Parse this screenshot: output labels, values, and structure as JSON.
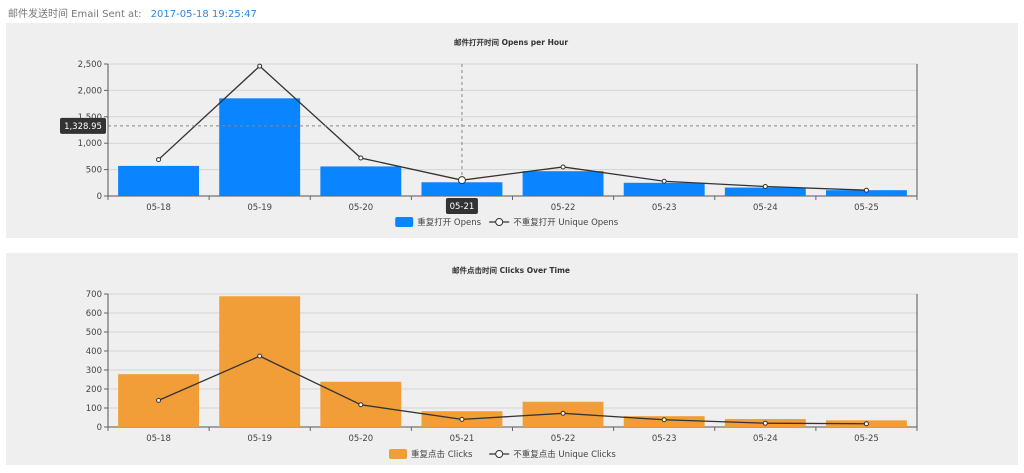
{
  "header": {
    "sent_label": "邮件发送时间 Email Sent at:",
    "sent_value": "2017-05-18 19:25:47"
  },
  "chart_data": [
    {
      "type": "bar",
      "title": "邮件打开时间 Opens per Hour",
      "categories": [
        "05-18",
        "05-19",
        "05-20",
        "05-21",
        "05-22",
        "05-23",
        "05-24",
        "05-25"
      ],
      "ylim": [
        0,
        2500
      ],
      "yticks": [
        0,
        500,
        1000,
        1500,
        2000,
        2500
      ],
      "ytick_labels": [
        "0",
        "500",
        "1,000",
        "1,500",
        "2,000",
        "2,500"
      ],
      "bar_color": "#0a84ff",
      "line_color": "#333333",
      "series": [
        {
          "name": "重复打开 Opens",
          "kind": "bar",
          "values": [
            570,
            1850,
            560,
            260,
            470,
            250,
            160,
            110
          ]
        },
        {
          "name": "不重复打开 Unique Opens",
          "kind": "line",
          "values": [
            690,
            2460,
            720,
            300,
            550,
            280,
            180,
            110
          ]
        }
      ],
      "highlight": {
        "category": "05-21",
        "category_index": 3,
        "y_label": "1,328.95",
        "y_value": 1328.95
      },
      "grid": true,
      "legend": "bottom-center"
    },
    {
      "type": "bar",
      "title": "邮件点击时间 Clicks Over Time",
      "categories": [
        "05-18",
        "05-19",
        "05-20",
        "05-21",
        "05-22",
        "05-23",
        "05-24",
        "05-25"
      ],
      "ylim": [
        0,
        700
      ],
      "yticks": [
        0,
        100,
        200,
        300,
        400,
        500,
        600,
        700
      ],
      "ytick_labels": [
        "0",
        "100",
        "200",
        "300",
        "400",
        "500",
        "600",
        "700"
      ],
      "bar_color": "#f19e38",
      "line_color": "#333333",
      "series": [
        {
          "name": "重复点击 Clicks",
          "kind": "bar",
          "values": [
            278,
            688,
            238,
            83,
            133,
            57,
            42,
            35
          ]
        },
        {
          "name": "不重复点击 Unique Clicks",
          "kind": "line",
          "values": [
            140,
            373,
            117,
            40,
            72,
            38,
            20,
            17
          ]
        }
      ],
      "grid": true,
      "legend": "bottom-center"
    }
  ]
}
